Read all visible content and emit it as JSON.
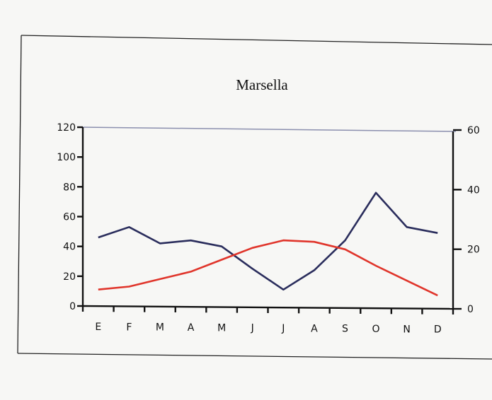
{
  "chart_data": {
    "type": "line",
    "title": "Marsella",
    "categories": [
      "E",
      "F",
      "M",
      "A",
      "M",
      "J",
      "J",
      "A",
      "S",
      "O",
      "N",
      "D"
    ],
    "left_axis": {
      "ylim": [
        0,
        120
      ],
      "ticks": [
        "0",
        "20",
        "40",
        "60",
        "80",
        "100",
        "120"
      ]
    },
    "right_axis": {
      "ylim": [
        0,
        60
      ],
      "ticks": [
        "0",
        "20",
        "40",
        "60"
      ]
    },
    "series": [
      {
        "axis": "left",
        "color": "#2a2d5c",
        "values": [
          46,
          53,
          42,
          44,
          40,
          25,
          11,
          24,
          44,
          76,
          53,
          49
        ]
      },
      {
        "axis": "right",
        "color": "#e0352b",
        "values": [
          6,
          7,
          9.5,
          12,
          16,
          20,
          22.5,
          22,
          19.5,
          14,
          9,
          4
        ]
      }
    ],
    "grid": false,
    "legend": "none"
  }
}
